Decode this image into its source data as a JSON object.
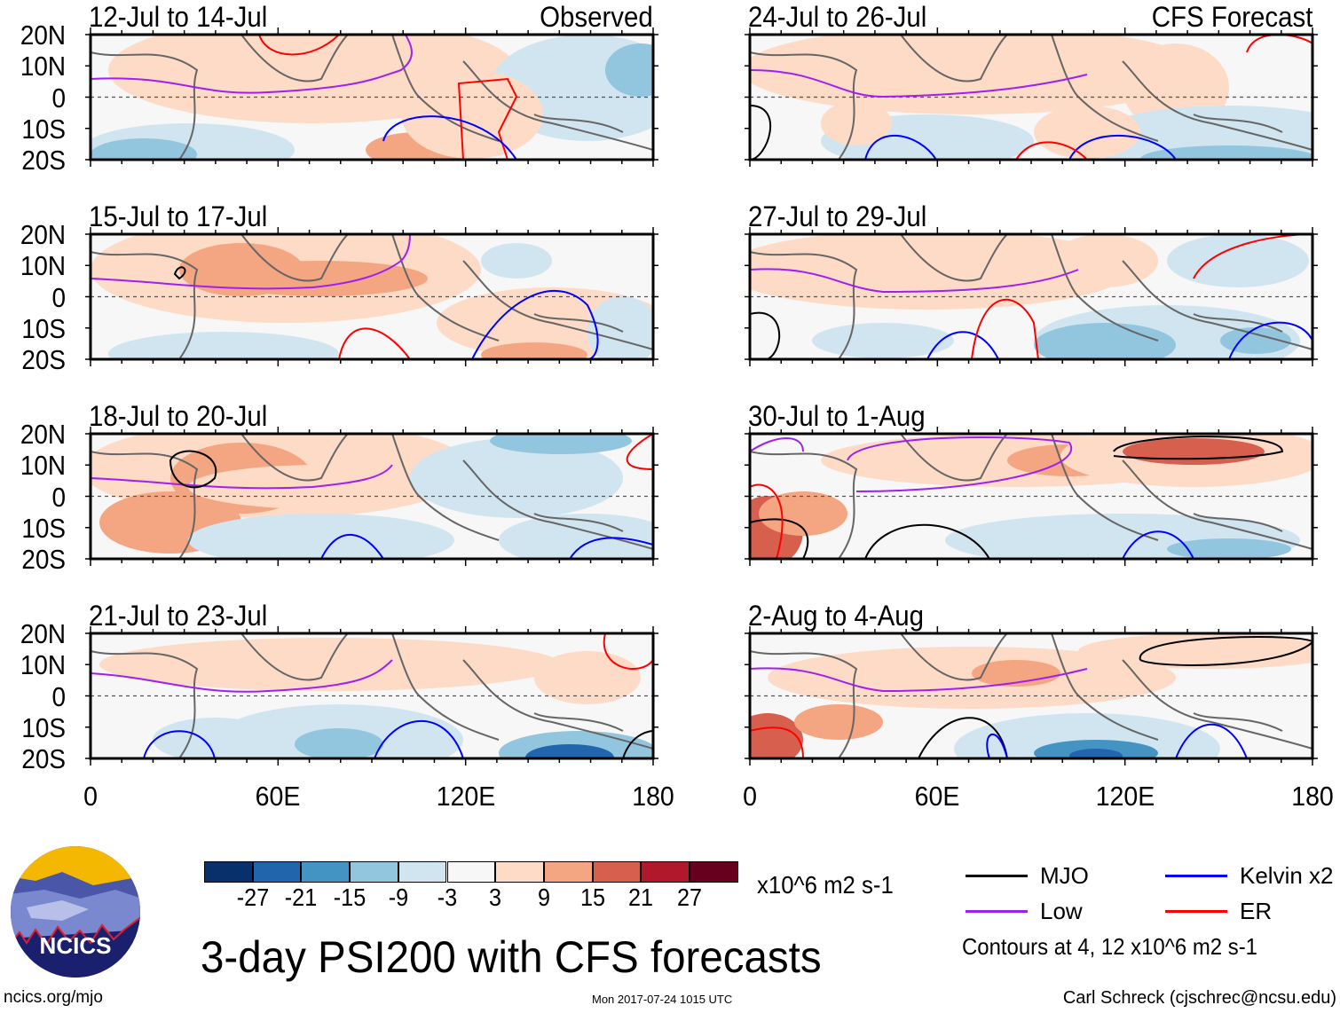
{
  "chart_data": {
    "type": "heatmap",
    "title": "3-day PSI200 with CFS forecasts",
    "units": "x10^6 m2 s-1",
    "y_ticks": [
      "20N",
      "10N",
      "0",
      "10S",
      "20S"
    ],
    "x_ticks": [
      "0",
      "60E",
      "120E",
      "180"
    ],
    "ylim": [
      -20,
      20
    ],
    "xlim": [
      0,
      180
    ],
    "panels": [
      {
        "title": "12-Jul to 14-Jul",
        "label": "Observed"
      },
      {
        "title": "15-Jul to 17-Jul",
        "label": ""
      },
      {
        "title": "18-Jul to 20-Jul",
        "label": ""
      },
      {
        "title": "21-Jul to 23-Jul",
        "label": ""
      },
      {
        "title": "24-Jul to 26-Jul",
        "label": "CFS Forecast"
      },
      {
        "title": "27-Jul to 29-Jul",
        "label": ""
      },
      {
        "title": "30-Jul to 1-Aug",
        "label": ""
      },
      {
        "title": "2-Aug to 4-Aug",
        "label": ""
      }
    ],
    "colorbar": {
      "levels": [
        "-27",
        "-21",
        "-15",
        "-9",
        "-3",
        "3",
        "9",
        "15",
        "21",
        "27"
      ],
      "colors": [
        "#08306b",
        "#2166ac",
        "#4393c3",
        "#92c5de",
        "#d1e5f0",
        "#f7f7f7",
        "#fddbc7",
        "#f4a582",
        "#d6604d",
        "#b2182b",
        "#67001f"
      ]
    },
    "legend": [
      {
        "label": "MJO",
        "color": "#000000"
      },
      {
        "label": "Kelvin x2",
        "color": "#0000ff"
      },
      {
        "label": "Low",
        "color": "#a020f0"
      },
      {
        "label": "ER",
        "color": "#ff0000"
      }
    ],
    "contour_note": "Contours at 4, 12 x10^6 m2 s-1"
  },
  "logo_text": "NCICS",
  "footer": {
    "left": "ncics.org/mjo",
    "center": "Mon 2017-07-24 1015 UTC",
    "right": "Carl Schreck (cjschrec@ncsu.edu)"
  }
}
